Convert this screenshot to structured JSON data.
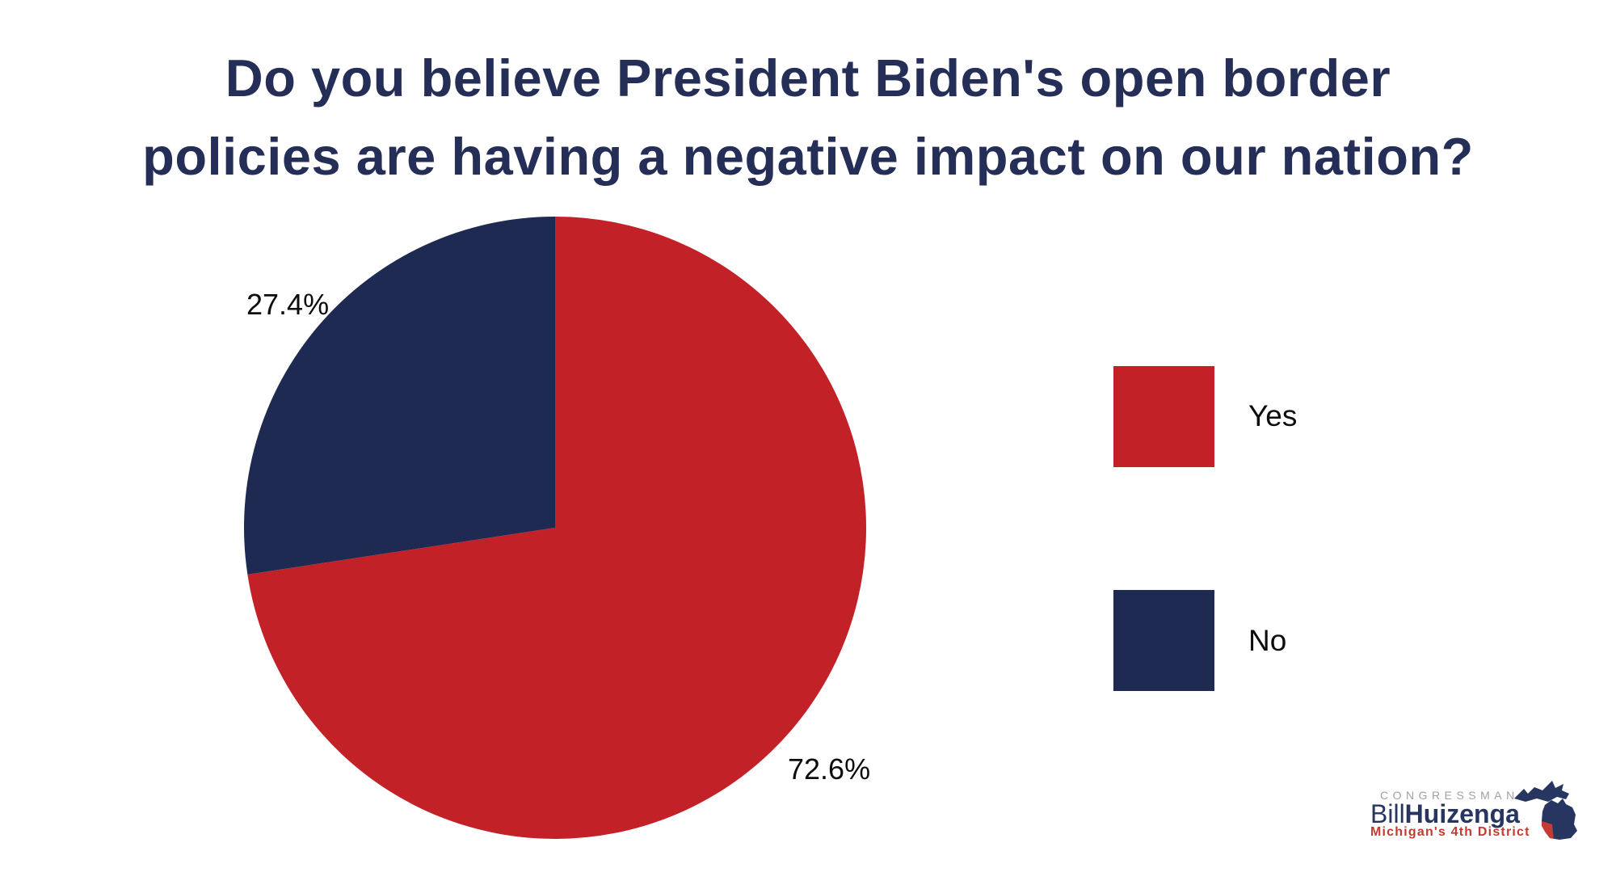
{
  "title": {
    "line1": "Do you believe President Biden's open border",
    "line2": "policies are having a negative impact on our nation?"
  },
  "chart_data": {
    "type": "pie",
    "title": "Do you believe President Biden's open border policies are having a negative impact on our nation?",
    "labels": [
      "Yes",
      "No"
    ],
    "values": [
      72.6,
      27.4
    ],
    "unit": "%",
    "data_labels": [
      "72.6%",
      "27.4%"
    ],
    "colors": [
      "#c32128",
      "#1e2a52"
    ],
    "start_angle_deg": 0,
    "direction": "clockwise",
    "legend_position": "right",
    "data_label_position": "outside"
  },
  "logo": {
    "congressman": "CONGRESSMAN",
    "name_first": "Bill",
    "name_last": "Huizenga",
    "district": "Michigan's 4th District"
  },
  "colors": {
    "background": "#ffffff",
    "title_navy": "#242e57",
    "label_black": "#0d0d0d",
    "logo_navy": "#273561",
    "logo_gray": "#a1a1a3",
    "logo_red": "#c53a32"
  }
}
